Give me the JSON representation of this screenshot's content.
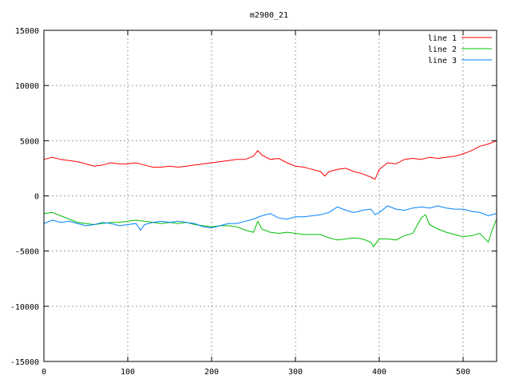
{
  "chart_data": {
    "type": "line",
    "title": "m2900_21",
    "xlabel": "",
    "ylabel": "",
    "xlim": [
      0,
      540
    ],
    "ylim": [
      -15000,
      15000
    ],
    "x_ticks": [
      0,
      100,
      200,
      300,
      400,
      500
    ],
    "y_ticks": [
      -15000,
      -10000,
      -5000,
      0,
      5000,
      10000,
      15000
    ],
    "grid": true,
    "legend_position": "top-right",
    "series": [
      {
        "name": "line 1",
        "color": "#ff0000",
        "points": [
          [
            0,
            3300
          ],
          [
            10,
            3500
          ],
          [
            20,
            3300
          ],
          [
            30,
            3200
          ],
          [
            40,
            3100
          ],
          [
            50,
            2900
          ],
          [
            60,
            2700
          ],
          [
            70,
            2800
          ],
          [
            80,
            3000
          ],
          [
            90,
            2900
          ],
          [
            100,
            2900
          ],
          [
            110,
            3000
          ],
          [
            120,
            2800
          ],
          [
            130,
            2600
          ],
          [
            140,
            2600
          ],
          [
            150,
            2700
          ],
          [
            160,
            2600
          ],
          [
            170,
            2700
          ],
          [
            180,
            2800
          ],
          [
            190,
            2900
          ],
          [
            200,
            3000
          ],
          [
            210,
            3100
          ],
          [
            220,
            3200
          ],
          [
            230,
            3300
          ],
          [
            240,
            3300
          ],
          [
            250,
            3600
          ],
          [
            255,
            4100
          ],
          [
            260,
            3700
          ],
          [
            270,
            3300
          ],
          [
            280,
            3400
          ],
          [
            290,
            3000
          ],
          [
            300,
            2700
          ],
          [
            310,
            2600
          ],
          [
            320,
            2400
          ],
          [
            330,
            2200
          ],
          [
            335,
            1800
          ],
          [
            340,
            2200
          ],
          [
            350,
            2400
          ],
          [
            360,
            2500
          ],
          [
            370,
            2200
          ],
          [
            380,
            2000
          ],
          [
            390,
            1700
          ],
          [
            395,
            1500
          ],
          [
            400,
            2400
          ],
          [
            410,
            3000
          ],
          [
            420,
            2900
          ],
          [
            430,
            3300
          ],
          [
            440,
            3400
          ],
          [
            450,
            3300
          ],
          [
            460,
            3500
          ],
          [
            470,
            3400
          ],
          [
            480,
            3500
          ],
          [
            490,
            3600
          ],
          [
            500,
            3800
          ],
          [
            510,
            4100
          ],
          [
            520,
            4500
          ],
          [
            530,
            4700
          ],
          [
            540,
            5000
          ]
        ]
      },
      {
        "name": "line 2",
        "color": "#00c000",
        "points": [
          [
            0,
            -1600
          ],
          [
            10,
            -1500
          ],
          [
            20,
            -1800
          ],
          [
            30,
            -2100
          ],
          [
            40,
            -2400
          ],
          [
            50,
            -2500
          ],
          [
            60,
            -2600
          ],
          [
            70,
            -2500
          ],
          [
            80,
            -2400
          ],
          [
            90,
            -2400
          ],
          [
            100,
            -2300
          ],
          [
            110,
            -2200
          ],
          [
            120,
            -2300
          ],
          [
            130,
            -2400
          ],
          [
            140,
            -2500
          ],
          [
            150,
            -2400
          ],
          [
            160,
            -2500
          ],
          [
            170,
            -2400
          ],
          [
            180,
            -2600
          ],
          [
            190,
            -2700
          ],
          [
            200,
            -2800
          ],
          [
            210,
            -2700
          ],
          [
            220,
            -2700
          ],
          [
            230,
            -2800
          ],
          [
            240,
            -3100
          ],
          [
            250,
            -3300
          ],
          [
            255,
            -2300
          ],
          [
            260,
            -3000
          ],
          [
            270,
            -3300
          ],
          [
            280,
            -3400
          ],
          [
            290,
            -3300
          ],
          [
            300,
            -3400
          ],
          [
            310,
            -3500
          ],
          [
            320,
            -3500
          ],
          [
            330,
            -3500
          ],
          [
            340,
            -3800
          ],
          [
            350,
            -4000
          ],
          [
            360,
            -3900
          ],
          [
            370,
            -3800
          ],
          [
            380,
            -3900
          ],
          [
            390,
            -4200
          ],
          [
            393,
            -4600
          ],
          [
            400,
            -3900
          ],
          [
            410,
            -3900
          ],
          [
            420,
            -4000
          ],
          [
            430,
            -3600
          ],
          [
            440,
            -3400
          ],
          [
            450,
            -2000
          ],
          [
            455,
            -1700
          ],
          [
            460,
            -2600
          ],
          [
            470,
            -3000
          ],
          [
            480,
            -3300
          ],
          [
            490,
            -3500
          ],
          [
            500,
            -3700
          ],
          [
            510,
            -3600
          ],
          [
            520,
            -3400
          ],
          [
            530,
            -4200
          ],
          [
            535,
            -3000
          ],
          [
            540,
            -2100
          ]
        ]
      },
      {
        "name": "line 3",
        "color": "#0080ff",
        "points": [
          [
            0,
            -2500
          ],
          [
            10,
            -2200
          ],
          [
            20,
            -2400
          ],
          [
            30,
            -2300
          ],
          [
            40,
            -2500
          ],
          [
            50,
            -2700
          ],
          [
            60,
            -2600
          ],
          [
            70,
            -2400
          ],
          [
            80,
            -2500
          ],
          [
            90,
            -2700
          ],
          [
            100,
            -2600
          ],
          [
            110,
            -2500
          ],
          [
            115,
            -3100
          ],
          [
            120,
            -2600
          ],
          [
            130,
            -2400
          ],
          [
            140,
            -2300
          ],
          [
            150,
            -2400
          ],
          [
            160,
            -2300
          ],
          [
            170,
            -2400
          ],
          [
            180,
            -2500
          ],
          [
            190,
            -2800
          ],
          [
            200,
            -2900
          ],
          [
            210,
            -2700
          ],
          [
            220,
            -2500
          ],
          [
            230,
            -2500
          ],
          [
            240,
            -2300
          ],
          [
            250,
            -2100
          ],
          [
            260,
            -1800
          ],
          [
            270,
            -1600
          ],
          [
            280,
            -2000
          ],
          [
            290,
            -2100
          ],
          [
            300,
            -1900
          ],
          [
            310,
            -1900
          ],
          [
            320,
            -1800
          ],
          [
            330,
            -1700
          ],
          [
            340,
            -1500
          ],
          [
            350,
            -1000
          ],
          [
            360,
            -1300
          ],
          [
            370,
            -1500
          ],
          [
            380,
            -1300
          ],
          [
            390,
            -1200
          ],
          [
            395,
            -1700
          ],
          [
            400,
            -1500
          ],
          [
            410,
            -900
          ],
          [
            420,
            -1200
          ],
          [
            430,
            -1300
          ],
          [
            440,
            -1100
          ],
          [
            450,
            -1000
          ],
          [
            460,
            -1100
          ],
          [
            470,
            -900
          ],
          [
            480,
            -1100
          ],
          [
            490,
            -1200
          ],
          [
            500,
            -1200
          ],
          [
            510,
            -1400
          ],
          [
            520,
            -1500
          ],
          [
            530,
            -1800
          ],
          [
            540,
            -1600
          ]
        ]
      }
    ]
  }
}
